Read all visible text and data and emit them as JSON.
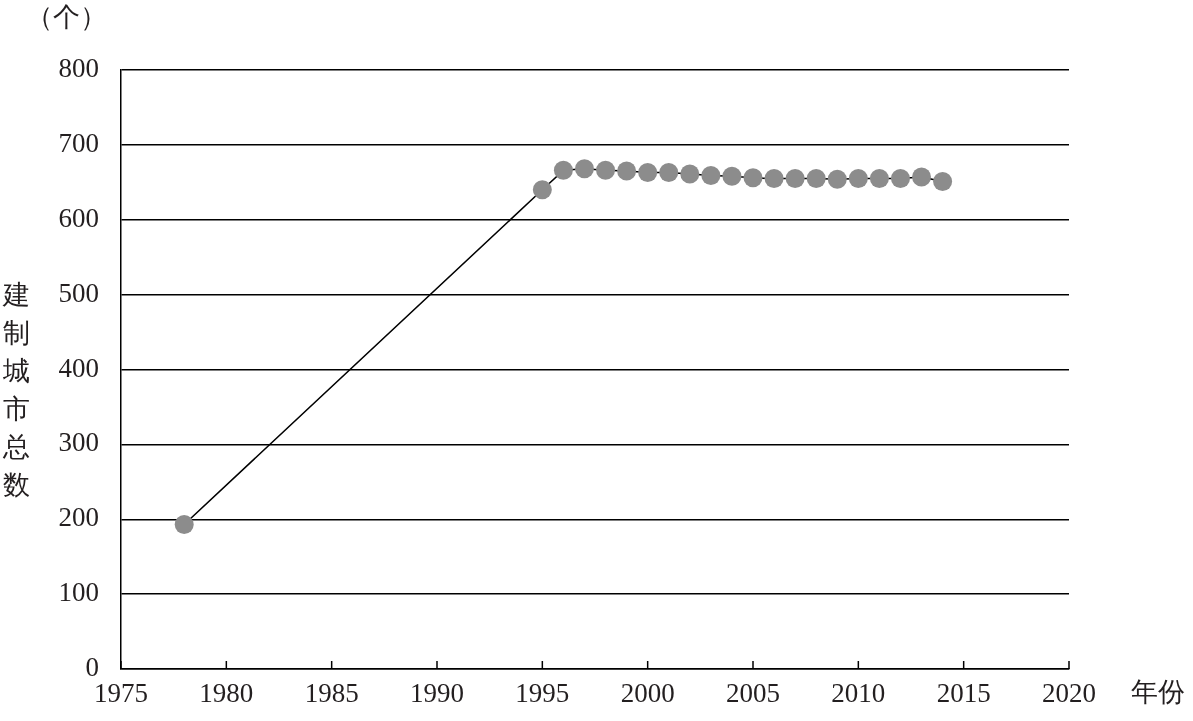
{
  "chart_data": {
    "type": "line",
    "xlabel": "年份",
    "ylabel": "建制城市总数",
    "annotations": [
      "（个）"
    ],
    "x": [
      1978,
      1995,
      1996,
      1997,
      1998,
      1999,
      2000,
      2001,
      2002,
      2003,
      2004,
      2005,
      2006,
      2007,
      2008,
      2009,
      2010,
      2011,
      2012,
      2013,
      2014
    ],
    "series": [
      {
        "color": "#8c8c8c",
        "values": [
          193,
          640,
          666,
          668,
          666,
          665,
          663,
          663,
          661,
          659,
          658,
          656,
          655,
          655,
          655,
          654,
          655,
          655,
          655,
          657,
          651
        ]
      }
    ],
    "xlim": [
      1975,
      2020
    ],
    "xticks": [
      1975,
      1980,
      1985,
      1990,
      1995,
      2000,
      2005,
      2010,
      2015,
      2020
    ],
    "ylim": [
      0,
      800
    ],
    "yticks": [
      0,
      100,
      200,
      300,
      400,
      500,
      600,
      700,
      800
    ],
    "grid": "y",
    "marker": "circle",
    "line_style": "solid"
  }
}
